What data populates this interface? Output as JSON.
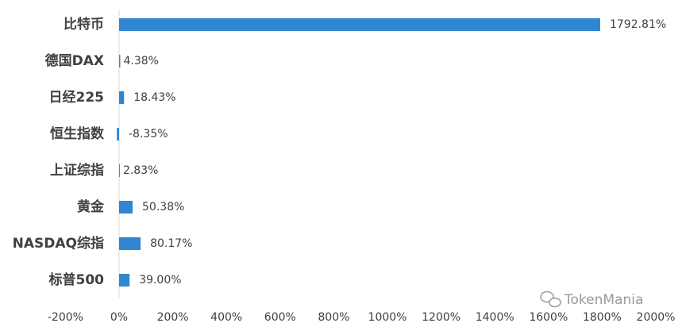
{
  "chart_data": {
    "type": "barh",
    "categories": [
      "比特币",
      "德国DAX",
      "日经225",
      "恒生指数",
      "上证综指",
      "黄金",
      "NASDAQ综指",
      "标普500"
    ],
    "values": [
      1792.81,
      4.38,
      18.43,
      -8.35,
      2.83,
      50.38,
      80.17,
      39.0
    ],
    "value_labels": [
      "1792.81%",
      "4.38%",
      "18.43%",
      "-8.35%",
      "2.83%",
      "50.38%",
      "80.17%",
      "39.00%"
    ],
    "color": "#2f87d1",
    "xlim": [
      -200,
      2000
    ],
    "xticks": [
      {
        "value": -200,
        "label": "-200%"
      },
      {
        "value": 0,
        "label": "0%"
      },
      {
        "value": 200,
        "label": "200%"
      },
      {
        "value": 400,
        "label": "400%"
      },
      {
        "value": 600,
        "label": "600%"
      },
      {
        "value": 800,
        "label": "800%"
      },
      {
        "value": 1000,
        "label": "1000%"
      },
      {
        "value": 1200,
        "label": "1200%"
      },
      {
        "value": 1400,
        "label": "1400%"
      },
      {
        "value": 1600,
        "label": "1600%"
      },
      {
        "value": 1800,
        "label": "1800%"
      },
      {
        "value": 2000,
        "label": "2000%"
      }
    ],
    "grid": false,
    "watermark": "TokenMania"
  }
}
